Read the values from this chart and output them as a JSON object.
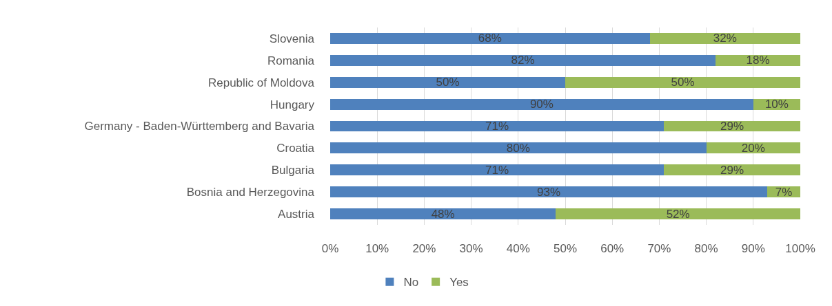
{
  "chart_data": {
    "type": "bar",
    "orientation": "horizontal",
    "stacked": true,
    "categories": [
      "Slovenia",
      "Romania",
      "Republic of Moldova",
      "Hungary",
      "Germany - Baden-Württemberg and Bavaria",
      "Croatia",
      "Bulgaria",
      "Bosnia and Herzegovina",
      "Austria"
    ],
    "series": [
      {
        "name": "No",
        "color": "#4f81bd",
        "values": [
          68,
          82,
          50,
          90,
          71,
          80,
          71,
          93,
          48
        ],
        "value_labels": [
          "68%",
          "82%",
          "50%",
          "90%",
          "71%",
          "80%",
          "71%",
          "93%",
          "48%"
        ]
      },
      {
        "name": "Yes",
        "color": "#9bbb59",
        "values": [
          32,
          18,
          50,
          10,
          29,
          20,
          29,
          7,
          52
        ],
        "value_labels": [
          "32%",
          "18%",
          "50%",
          "10%",
          "29%",
          "20%",
          "29%",
          "7%",
          "52%"
        ]
      }
    ],
    "xlim": [
      0,
      100
    ],
    "xticks": [
      {
        "value": 0,
        "label": "0%"
      },
      {
        "value": 10,
        "label": "10%"
      },
      {
        "value": 20,
        "label": "20%"
      },
      {
        "value": 30,
        "label": "30%"
      },
      {
        "value": 40,
        "label": "40%"
      },
      {
        "value": 50,
        "label": "50%"
      },
      {
        "value": 60,
        "label": "60%"
      },
      {
        "value": 70,
        "label": "70%"
      },
      {
        "value": 80,
        "label": "80%"
      },
      {
        "value": 90,
        "label": "90%"
      },
      {
        "value": 100,
        "label": "100%"
      }
    ],
    "grid": "x",
    "legend": "bottom"
  }
}
